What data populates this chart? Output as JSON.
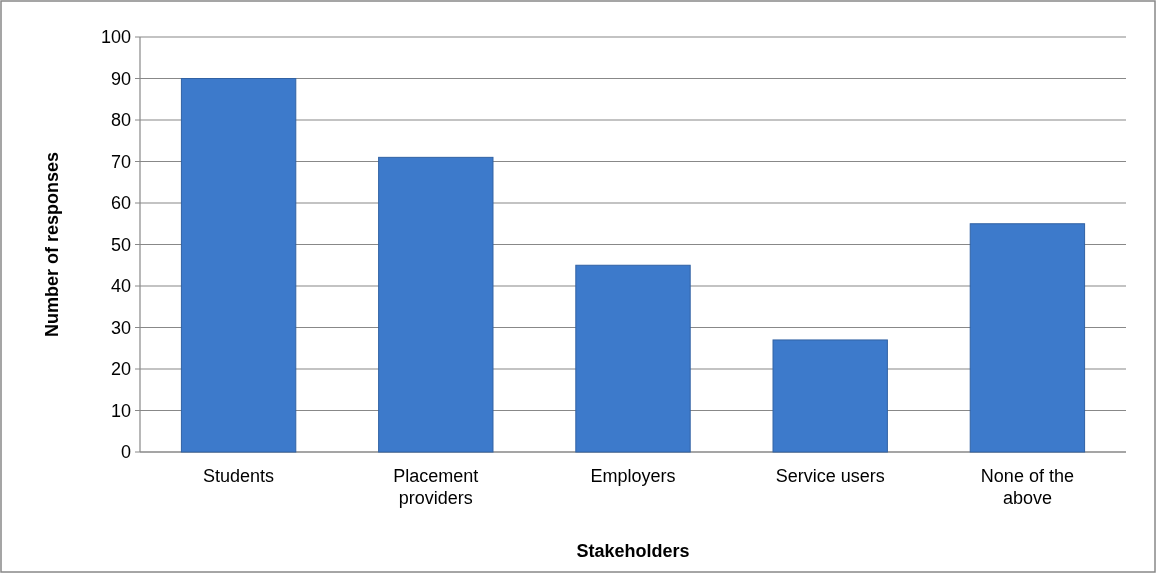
{
  "chart_data": {
    "type": "bar",
    "xlabel": "Stakeholders",
    "ylabel": "Number of responses",
    "categories": [
      "Students",
      "Placement providers",
      "Employers",
      "Service users",
      "None of the above"
    ],
    "values": [
      90,
      71,
      45,
      27,
      55
    ],
    "color": "#3d7acb",
    "ylim": [
      0,
      100
    ],
    "yticks": [
      0,
      10,
      20,
      30,
      40,
      50,
      60,
      70,
      80,
      90,
      100
    ],
    "grid": "y"
  }
}
